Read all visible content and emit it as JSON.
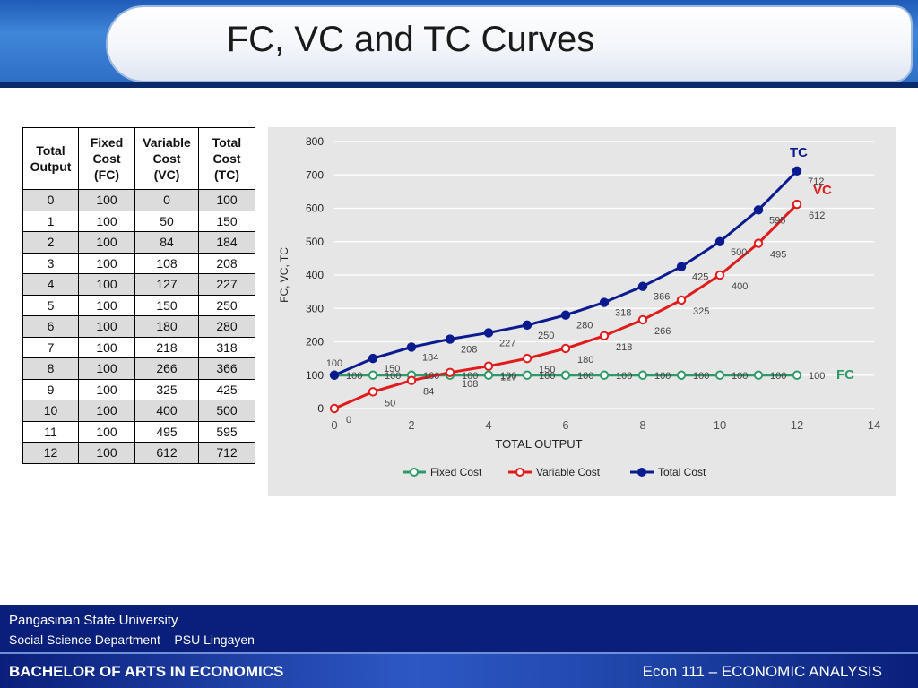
{
  "title": "FC, VC and TC Curves",
  "table": {
    "headers": [
      "Total Output",
      "Fixed Cost (FC)",
      "Variable Cost (VC)",
      "Total Cost (TC)"
    ],
    "rows": [
      [
        "0",
        "100",
        "0",
        "100"
      ],
      [
        "1",
        "100",
        "50",
        "150"
      ],
      [
        "2",
        "100",
        "84",
        "184"
      ],
      [
        "3",
        "100",
        "108",
        "208"
      ],
      [
        "4",
        "100",
        "127",
        "227"
      ],
      [
        "5",
        "100",
        "150",
        "250"
      ],
      [
        "6",
        "100",
        "180",
        "280"
      ],
      [
        "7",
        "100",
        "218",
        "318"
      ],
      [
        "8",
        "100",
        "266",
        "366"
      ],
      [
        "9",
        "100",
        "325",
        "425"
      ],
      [
        "10",
        "100",
        "400",
        "500"
      ],
      [
        "11",
        "100",
        "495",
        "595"
      ],
      [
        "12",
        "100",
        "612",
        "712"
      ]
    ]
  },
  "chart_data": {
    "type": "line",
    "x": [
      0,
      1,
      2,
      3,
      4,
      5,
      6,
      7,
      8,
      9,
      10,
      11,
      12
    ],
    "xlabel": "TOTAL OUTPUT",
    "ylabel": "FC, VC, TC",
    "xlim": [
      0,
      14
    ],
    "ylim": [
      0,
      800
    ],
    "xticks": [
      0,
      2,
      4,
      6,
      8,
      10,
      12,
      14
    ],
    "yticks": [
      0,
      100,
      200,
      300,
      400,
      500,
      600,
      700,
      800
    ],
    "grid": "horizontal",
    "legend": "bottom",
    "series": [
      {
        "name": "Fixed Cost",
        "color": "#2e9a6a",
        "values": [
          100,
          100,
          100,
          100,
          100,
          100,
          100,
          100,
          100,
          100,
          100,
          100,
          100
        ]
      },
      {
        "name": "Variable Cost",
        "color": "#e01b1b",
        "values": [
          0,
          50,
          84,
          108,
          127,
          150,
          180,
          218,
          266,
          325,
          400,
          495,
          612
        ]
      },
      {
        "name": "Total Cost",
        "color": "#0b1b8f",
        "values": [
          100,
          150,
          184,
          208,
          227,
          250,
          280,
          318,
          366,
          425,
          500,
          595,
          712
        ]
      }
    ],
    "annotations": [
      {
        "text": "TC",
        "color": "#0b1b8f"
      },
      {
        "text": "VC",
        "color": "#e01b1b"
      },
      {
        "text": "FC",
        "color": "#2e9a6a"
      }
    ]
  },
  "footer": {
    "university": "Pangasinan State University",
    "department": "Social Science  Department – PSU Lingayen",
    "program": "BACHELOR OF ARTS IN ECONOMICS",
    "course": "Econ 111 – ECONOMIC ANALYSIS"
  }
}
